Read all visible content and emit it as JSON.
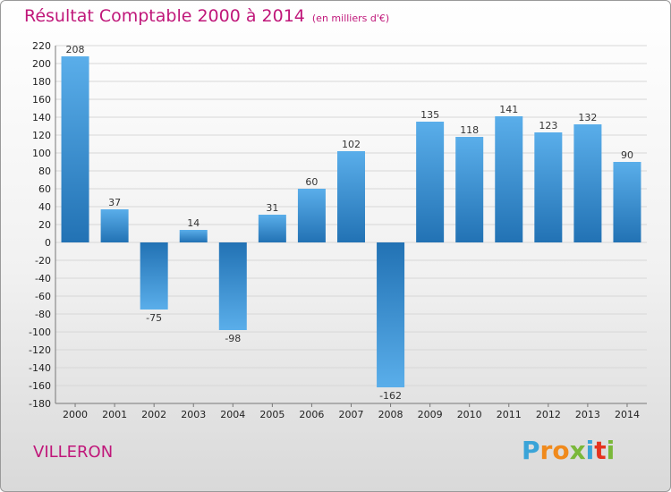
{
  "header": {
    "title": "Résultat Comptable 2000 à 2014",
    "subtitle": "(en milliers d'€)"
  },
  "commune": "VILLERON",
  "logo": {
    "letters": [
      "P",
      "r",
      "o",
      "x",
      "i",
      "t",
      "i"
    ],
    "colors": [
      "#3aa4d8",
      "#f08a1c",
      "#f08a1c",
      "#7ab83a",
      "#3aa4d8",
      "#e5331f",
      "#7ab83a"
    ]
  },
  "colors": {
    "bar_light": "#5aaeea",
    "bar_dark": "#2272b4",
    "title": "#c0177a",
    "grid": "#d7d7d7"
  },
  "chart_data": {
    "type": "bar",
    "categories": [
      "2000",
      "2001",
      "2002",
      "2003",
      "2004",
      "2005",
      "2006",
      "2007",
      "2008",
      "2009",
      "2010",
      "2011",
      "2012",
      "2013",
      "2014"
    ],
    "values": [
      208,
      37,
      -75,
      14,
      -98,
      31,
      60,
      102,
      -162,
      135,
      118,
      141,
      123,
      132,
      90
    ],
    "title": "Résultat Comptable 2000 à 2014",
    "ylim": [
      -180,
      220
    ],
    "yticks": [
      220,
      200,
      180,
      160,
      140,
      120,
      100,
      80,
      60,
      40,
      20,
      0,
      -20,
      -40,
      -60,
      -80,
      -100,
      -120,
      -140,
      -160,
      -180
    ],
    "grid": true
  }
}
